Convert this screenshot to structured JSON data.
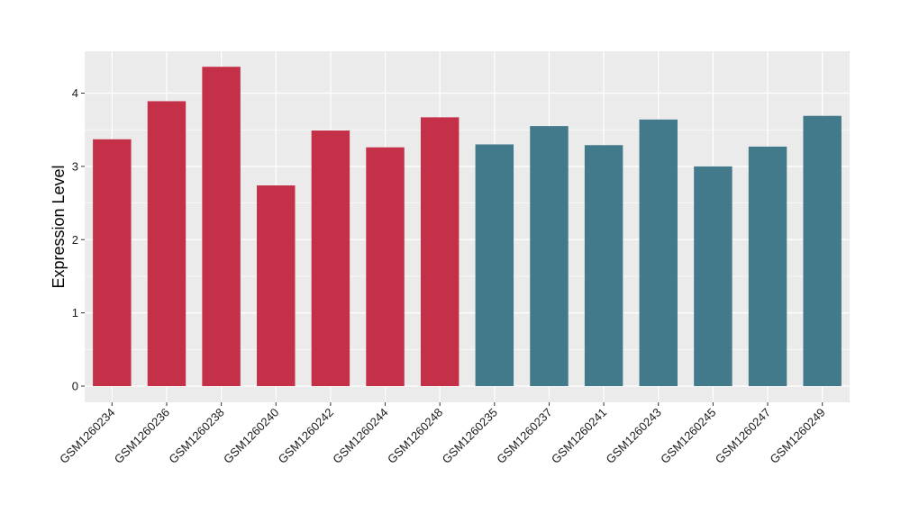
{
  "chart_data": {
    "type": "bar",
    "title": "",
    "xlabel": "",
    "ylabel": "Expression Level",
    "ylim": [
      0,
      4.55
    ],
    "yticks": [
      0,
      1,
      2,
      3,
      4
    ],
    "grid": true,
    "legend": "none",
    "colors": {
      "group_a": "#C33048",
      "group_b": "#437A8B",
      "panel_bg": "#EBEBEB",
      "grid": "#FFFFFF"
    },
    "categories": [
      "GSM1260234",
      "GSM1260236",
      "GSM1260238",
      "GSM1260240",
      "GSM1260242",
      "GSM1260244",
      "GSM1260248",
      "GSM1260235",
      "GSM1260237",
      "GSM1260241",
      "GSM1260243",
      "GSM1260245",
      "GSM1260247",
      "GSM1260249"
    ],
    "values": [
      3.37,
      3.89,
      4.36,
      2.74,
      3.49,
      3.26,
      3.67,
      3.3,
      3.55,
      3.29,
      3.64,
      3.0,
      3.27,
      3.69
    ],
    "groups": [
      "a",
      "a",
      "a",
      "a",
      "a",
      "a",
      "a",
      "b",
      "b",
      "b",
      "b",
      "b",
      "b",
      "b"
    ]
  }
}
